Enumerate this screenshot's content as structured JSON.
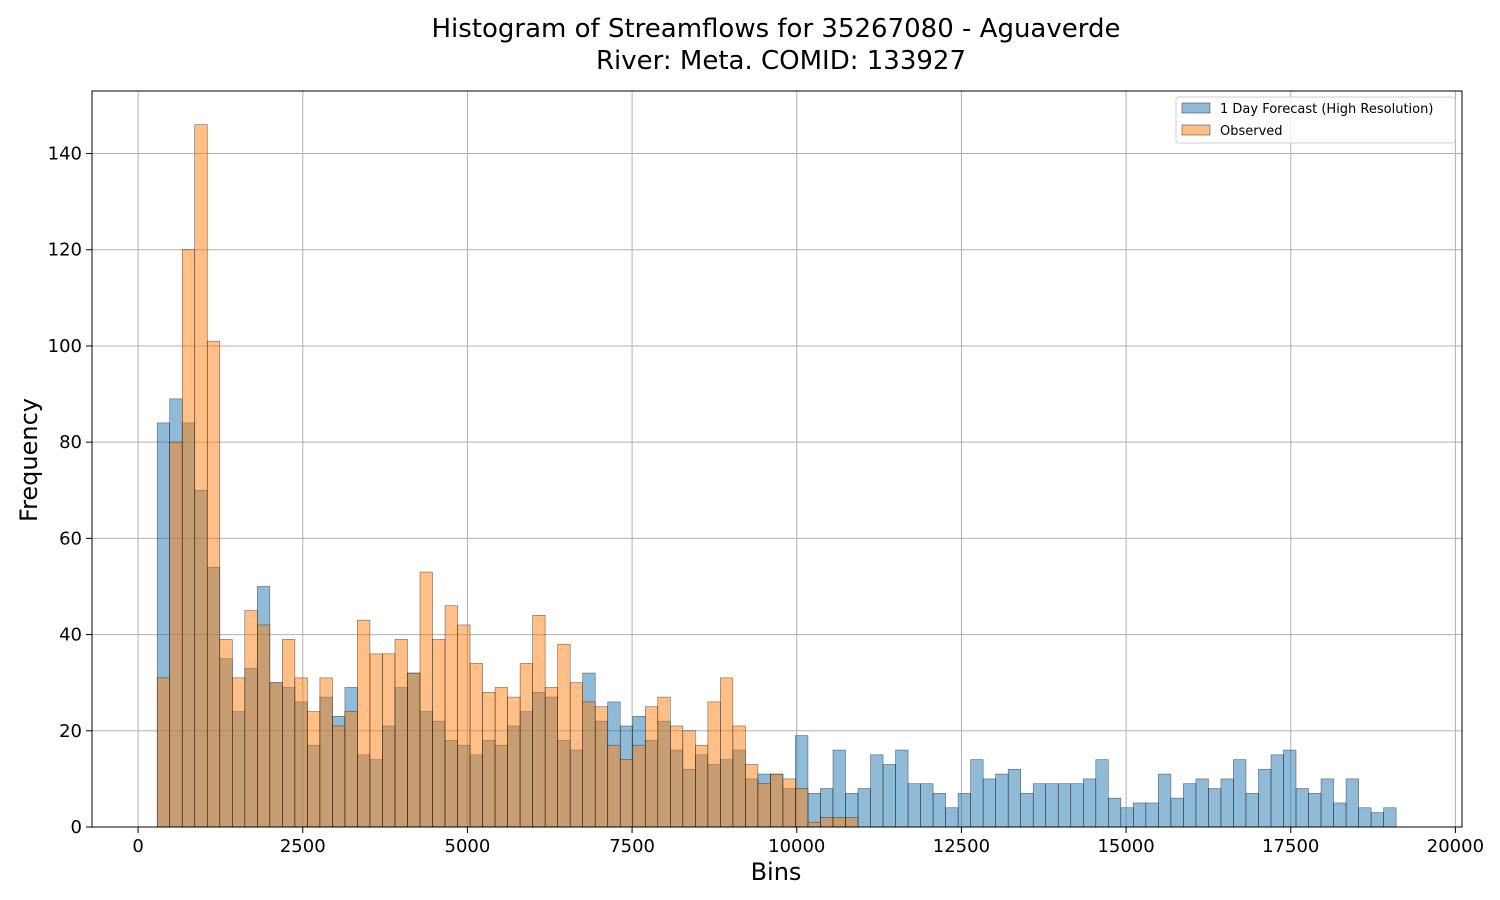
{
  "chart_data": {
    "type": "bar",
    "title": "Histogram of Streamflows for 35267080 - Aguaverde",
    "subtitle": "River: Meta. COMID: 133927",
    "xlabel": "Bins",
    "ylabel": "Frequency",
    "xlim": [
      -700,
      20100
    ],
    "ylim": [
      0,
      153
    ],
    "xticks": [
      0,
      2500,
      5000,
      7500,
      10000,
      12500,
      15000,
      17500,
      20000
    ],
    "yticks": [
      0,
      20,
      40,
      60,
      80,
      100,
      120,
      140
    ],
    "grid": true,
    "legend_position": "top-right",
    "bin_start": 290,
    "bin_width": 190,
    "series": [
      {
        "name": "1 Day Forecast (High Resolution)",
        "color": "#1f77b4",
        "values": [
          84,
          89,
          84,
          70,
          54,
          35,
          24,
          33,
          50,
          30,
          29,
          26,
          17,
          27,
          23,
          29,
          15,
          14,
          21,
          29,
          32,
          24,
          22,
          18,
          17,
          15,
          18,
          17,
          21,
          24,
          28,
          27,
          18,
          16,
          32,
          22,
          26,
          21,
          23,
          18,
          22,
          16,
          12,
          15,
          13,
          14,
          16,
          10,
          11,
          11,
          8,
          19,
          7,
          8,
          16,
          7,
          8,
          15,
          13,
          16,
          9,
          9,
          7,
          4,
          7,
          14,
          10,
          11,
          12,
          7,
          9,
          9,
          9,
          9,
          10,
          14,
          6,
          4,
          5,
          5,
          11,
          6,
          9,
          10,
          8,
          10,
          14,
          7,
          12,
          15,
          16,
          8,
          7,
          10,
          5,
          10,
          4,
          3,
          4
        ]
      },
      {
        "name": "Observed",
        "color": "#ff7f0e",
        "values": [
          31,
          80,
          120,
          146,
          101,
          39,
          31,
          45,
          42,
          30,
          39,
          31,
          24,
          31,
          21,
          24,
          43,
          36,
          36,
          39,
          32,
          53,
          39,
          46,
          42,
          34,
          28,
          29,
          27,
          34,
          44,
          29,
          38,
          30,
          26,
          25,
          17,
          14,
          17,
          25,
          27,
          21,
          20,
          17,
          26,
          31,
          21,
          13,
          9,
          11,
          10,
          8,
          1,
          2,
          2,
          2
        ]
      }
    ]
  }
}
